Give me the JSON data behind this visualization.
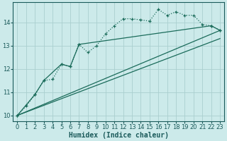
{
  "background_color": "#cceaea",
  "grid_color": "#aacfcf",
  "line_color": "#1a6b5a",
  "xlabel": "Humidex (Indice chaleur)",
  "xlim": [
    -0.5,
    23.5
  ],
  "ylim": [
    9.75,
    14.85
  ],
  "xticks": [
    0,
    1,
    2,
    3,
    4,
    5,
    6,
    7,
    8,
    9,
    10,
    11,
    12,
    13,
    14,
    15,
    16,
    17,
    18,
    19,
    20,
    21,
    22,
    23
  ],
  "yticks": [
    10,
    11,
    12,
    13,
    14
  ],
  "line1_x": [
    0,
    1,
    2,
    3,
    4,
    5,
    6,
    7,
    8,
    9,
    10,
    11,
    12,
    13,
    14,
    15,
    16,
    17,
    18,
    19,
    20,
    21,
    22,
    23
  ],
  "line1_y": [
    10.0,
    10.4,
    10.9,
    11.5,
    11.55,
    12.2,
    12.1,
    13.05,
    12.7,
    13.0,
    13.5,
    13.85,
    14.15,
    14.15,
    14.1,
    14.05,
    14.55,
    14.3,
    14.45,
    14.3,
    14.3,
    13.9,
    13.85,
    13.65
  ],
  "line2_x": [
    0,
    2,
    3,
    5,
    6,
    7,
    22,
    23
  ],
  "line2_y": [
    10.0,
    10.9,
    11.5,
    12.2,
    12.1,
    13.05,
    13.85,
    13.65
  ],
  "line3_x": [
    0,
    23
  ],
  "line3_y": [
    10.0,
    13.65
  ],
  "line4_x": [
    0,
    23
  ],
  "line4_y": [
    10.0,
    13.3
  ],
  "font_color": "#1a5a5a",
  "tick_fontsize": 6,
  "xlabel_fontsize": 7
}
